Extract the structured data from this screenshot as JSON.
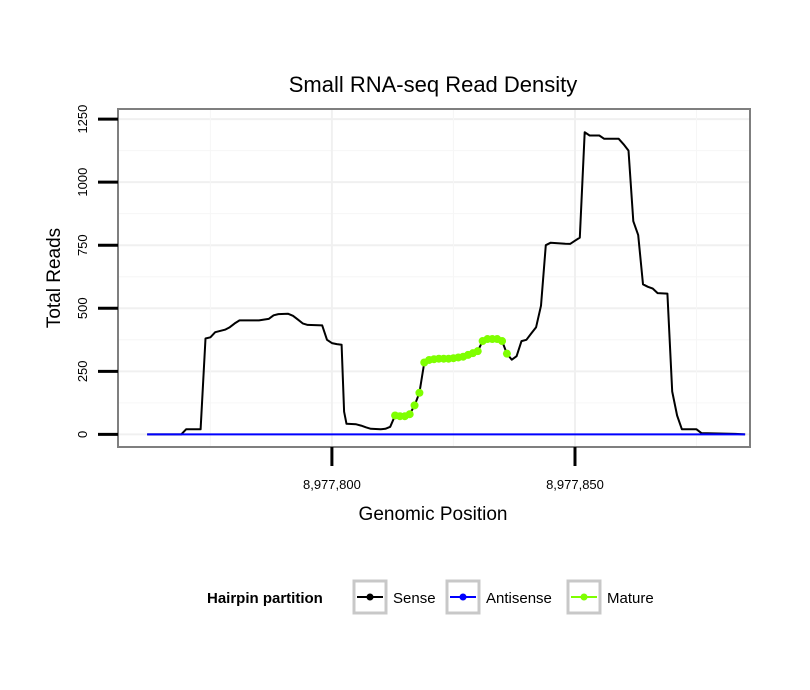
{
  "chart_data": {
    "type": "line",
    "title": "Small RNA-seq Read Density",
    "xlabel": "Genomic Position",
    "ylabel": "Total Reads",
    "xlim": [
      8977756,
      8977886
    ],
    "ylim": [
      -50,
      1290
    ],
    "xticks": [
      8977800,
      8977850
    ],
    "xtick_labels": [
      "8,977,800",
      "8,977,850"
    ],
    "yticks": [
      0,
      250,
      500,
      750,
      1000,
      1250
    ],
    "ytick_labels": [
      "0",
      "250",
      "500",
      "750",
      "1000",
      "1250"
    ],
    "grid": true,
    "legend_title": "Hairpin partition",
    "legend_position": "bottom",
    "series": [
      {
        "name": "Sense",
        "color": "#000000",
        "points": [
          [
            8977762,
            0
          ],
          [
            8977769,
            0
          ],
          [
            8977770,
            20
          ],
          [
            8977773,
            20
          ],
          [
            8977774,
            380
          ],
          [
            8977775,
            385
          ],
          [
            8977776,
            405
          ],
          [
            8977778,
            415
          ],
          [
            8977779,
            425
          ],
          [
            8977780,
            440
          ],
          [
            8977781,
            452
          ],
          [
            8977785,
            452
          ],
          [
            8977786,
            455
          ],
          [
            8977787,
            458
          ],
          [
            8977788,
            472
          ],
          [
            8977789,
            477
          ],
          [
            8977791,
            478
          ],
          [
            8977792,
            470
          ],
          [
            8977793,
            455
          ],
          [
            8977794,
            440
          ],
          [
            8977795,
            434
          ],
          [
            8977798,
            432
          ],
          [
            8977799,
            375
          ],
          [
            8977800,
            362
          ],
          [
            8977801,
            358
          ],
          [
            8977802,
            355
          ],
          [
            8977802.5,
            90
          ],
          [
            8977803,
            42
          ],
          [
            8977805,
            40
          ],
          [
            8977806,
            35
          ],
          [
            8977807,
            28
          ],
          [
            8977808,
            22
          ],
          [
            8977810,
            20
          ],
          [
            8977811,
            22
          ],
          [
            8977812,
            30
          ],
          [
            8977813,
            75
          ],
          [
            8977814,
            72
          ],
          [
            8977815,
            72
          ],
          [
            8977816,
            80
          ],
          [
            8977817,
            115
          ],
          [
            8977818,
            165
          ],
          [
            8977819,
            285
          ],
          [
            8977820,
            295
          ],
          [
            8977821,
            298
          ],
          [
            8977822,
            300
          ],
          [
            8977824,
            300
          ],
          [
            8977825,
            302
          ],
          [
            8977826,
            305
          ],
          [
            8977827,
            308
          ],
          [
            8977828,
            315
          ],
          [
            8977829,
            322
          ],
          [
            8977830,
            330
          ],
          [
            8977831,
            370
          ],
          [
            8977833,
            378
          ],
          [
            8977834,
            378
          ],
          [
            8977835,
            370
          ],
          [
            8977836,
            320
          ],
          [
            8977837,
            296
          ],
          [
            8977838,
            310
          ],
          [
            8977839,
            370
          ],
          [
            8977840,
            375
          ],
          [
            8977841,
            400
          ],
          [
            8977842,
            425
          ],
          [
            8977843,
            510
          ],
          [
            8977844,
            750
          ],
          [
            8977845,
            760
          ],
          [
            8977848,
            756
          ],
          [
            8977849,
            755
          ],
          [
            8977850,
            768
          ],
          [
            8977851,
            780
          ],
          [
            8977852,
            1198
          ],
          [
            8977853,
            1185
          ],
          [
            8977855,
            1185
          ],
          [
            8977856,
            1172
          ],
          [
            8977859,
            1172
          ],
          [
            8977860,
            1150
          ],
          [
            8977861,
            1125
          ],
          [
            8977862,
            845
          ],
          [
            8977863,
            790
          ],
          [
            8977864,
            595
          ],
          [
            8977865,
            585
          ],
          [
            8977866,
            578
          ],
          [
            8977867,
            560
          ],
          [
            8977869,
            558
          ],
          [
            8977870,
            170
          ],
          [
            8977871,
            75
          ],
          [
            8977872,
            20
          ],
          [
            8977875,
            20
          ],
          [
            8977876,
            5
          ],
          [
            8977883,
            2
          ],
          [
            8977885,
            0
          ]
        ]
      },
      {
        "name": "Antisense",
        "color": "#0000ff",
        "points": [
          [
            8977762,
            0
          ],
          [
            8977885,
            0
          ]
        ]
      },
      {
        "name": "Mature",
        "color": "#7fff00",
        "x": [
          8977813,
          8977814,
          8977815,
          8977816,
          8977817,
          8977818,
          8977819,
          8977820,
          8977821,
          8977822,
          8977823,
          8977824,
          8977825,
          8977826,
          8977827,
          8977828,
          8977829,
          8977830,
          8977831,
          8977832,
          8977833,
          8977834,
          8977835,
          8977836
        ],
        "y": [
          75,
          72,
          72,
          80,
          115,
          165,
          285,
          295,
          298,
          300,
          300,
          300,
          302,
          305,
          308,
          315,
          322,
          330,
          370,
          378,
          378,
          378,
          370,
          320
        ]
      }
    ]
  }
}
